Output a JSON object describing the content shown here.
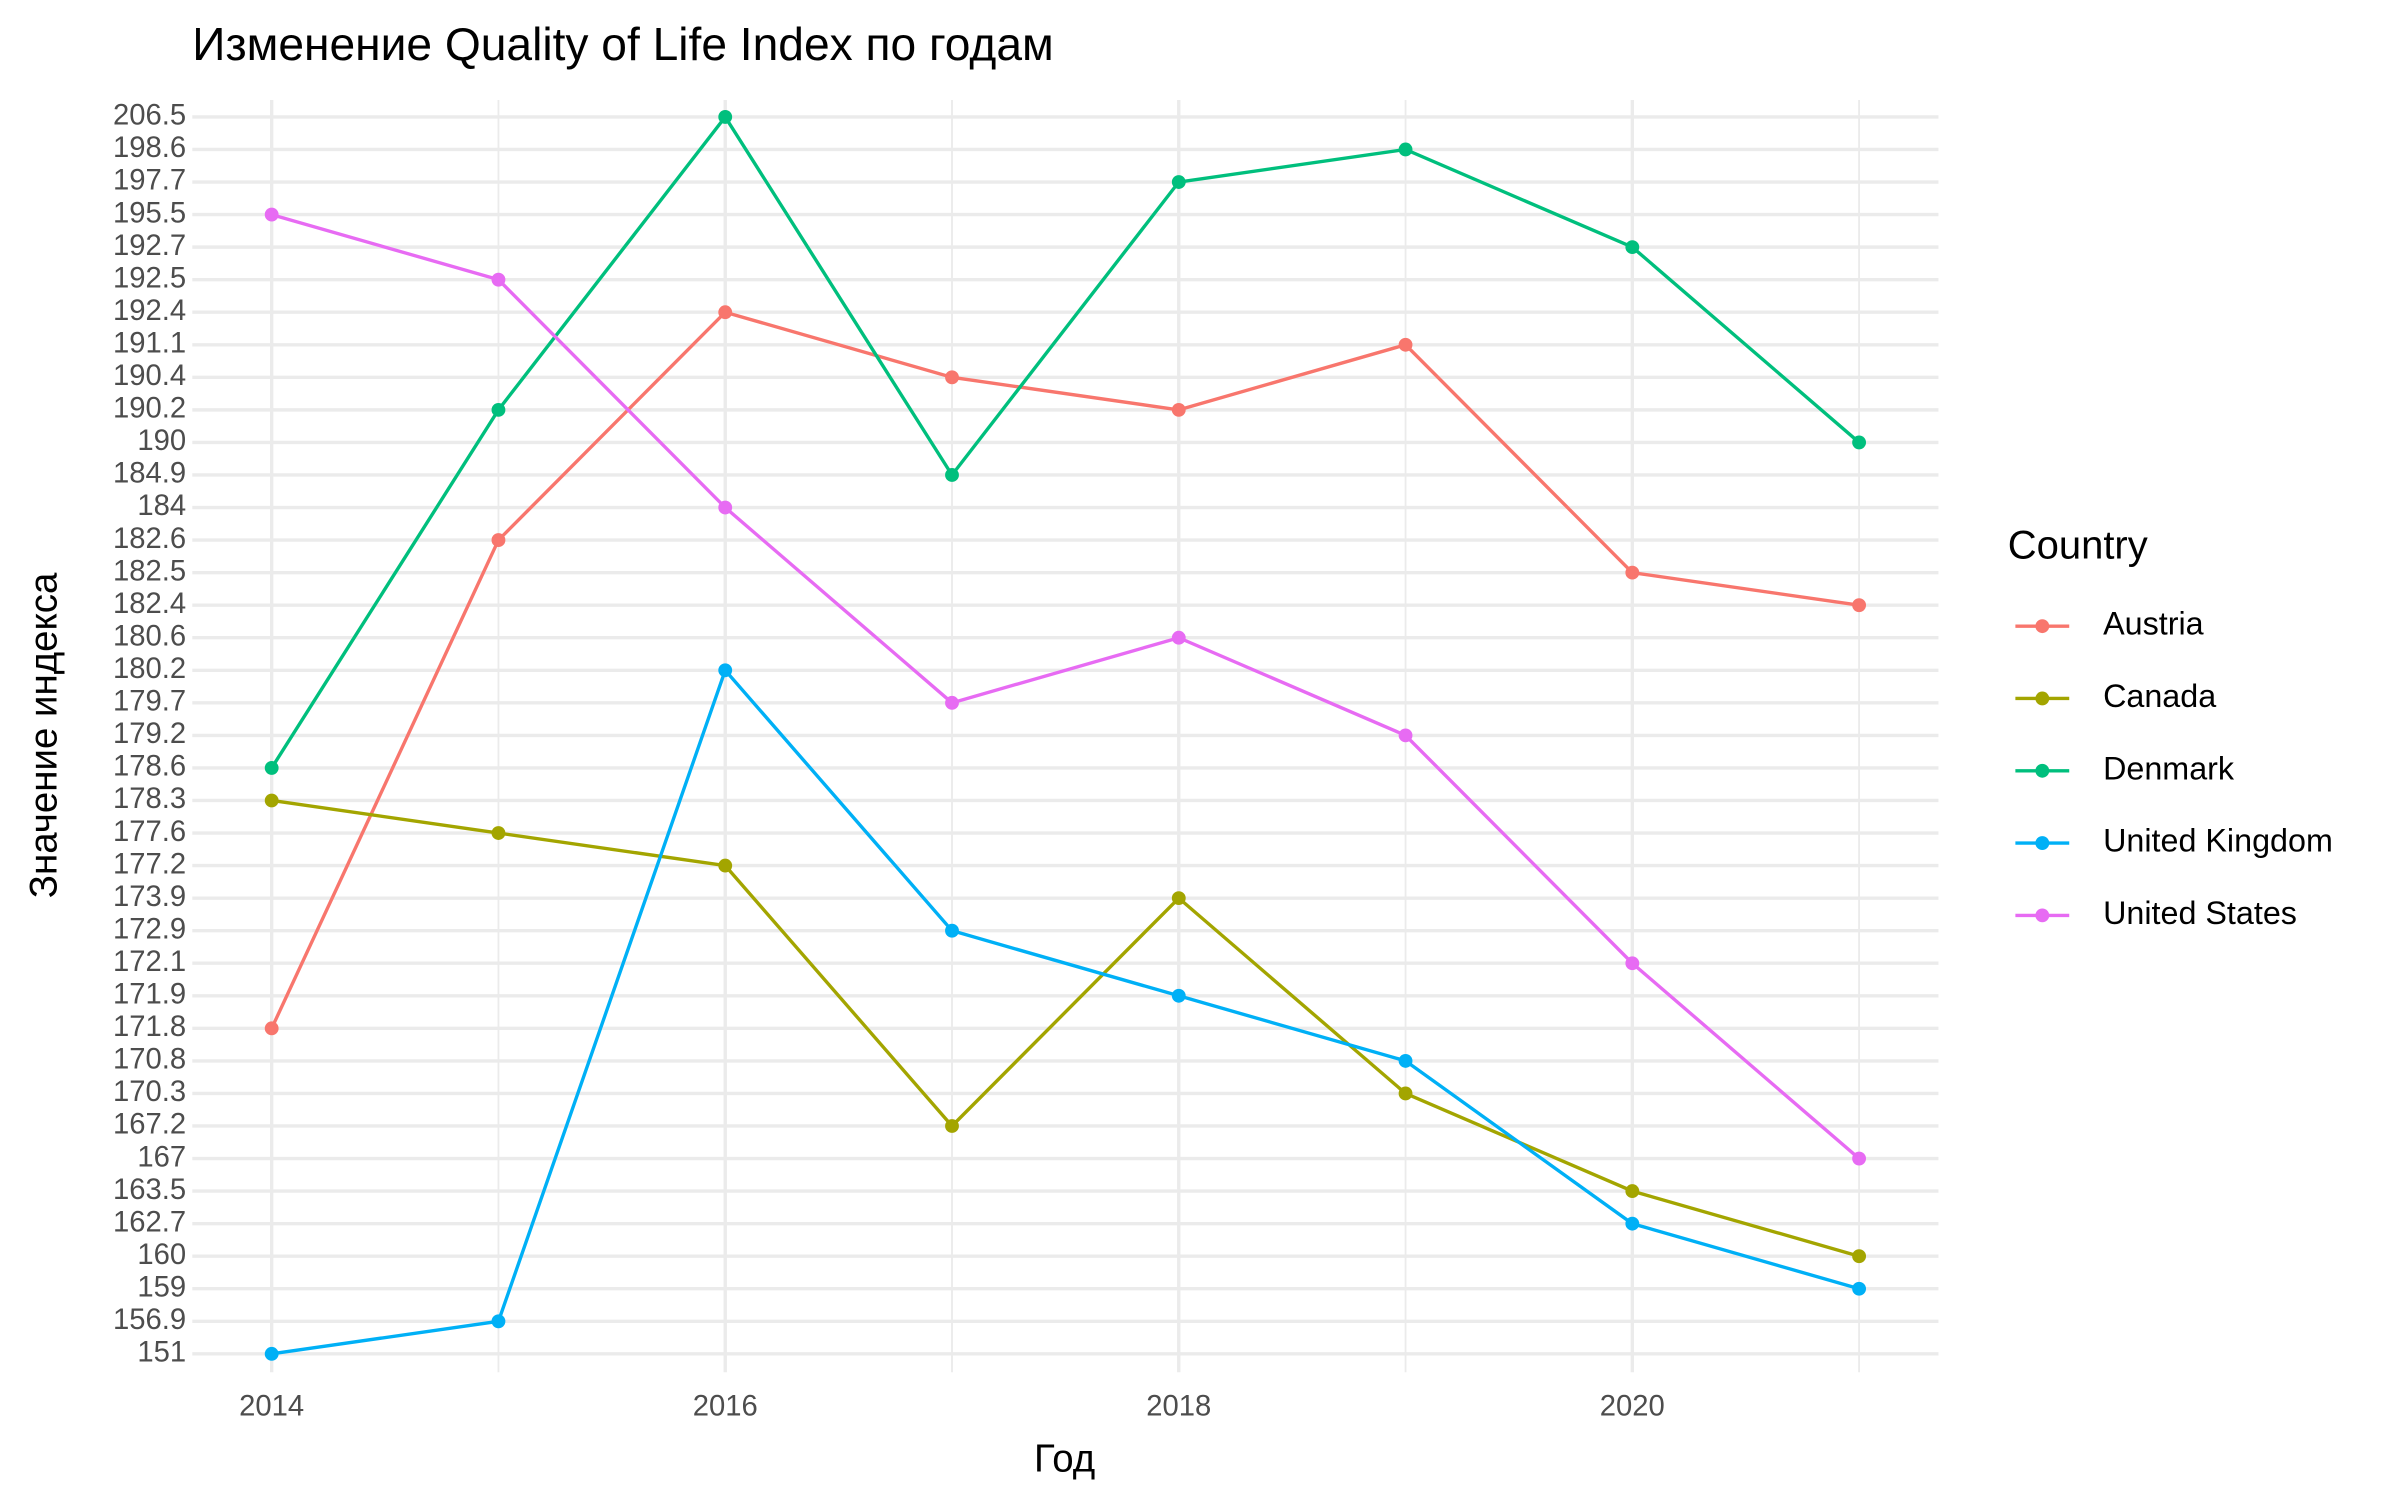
{
  "chart_data": {
    "type": "line",
    "title": "Изменение Quality of Life Index по годам",
    "x_label": "Год",
    "y_label": "Значение индекса",
    "legend_title": "Country",
    "legend": "right",
    "grid": true,
    "x": [
      2014,
      2015,
      2016,
      2017,
      2018,
      2019,
      2020,
      2021
    ],
    "xlim": [
      2013.65,
      2021.35
    ],
    "xticks": [
      2014,
      2016,
      2018,
      2020
    ],
    "ycategories": [
      "151",
      "156.9",
      "159",
      "160",
      "162.7",
      "163.5",
      "167",
      "167.2",
      "170.3",
      "170.8",
      "171.8",
      "171.9",
      "172.1",
      "172.9",
      "173.9",
      "177.2",
      "177.6",
      "178.3",
      "178.6",
      "179.2",
      "179.7",
      "180.2",
      "180.6",
      "182.4",
      "182.5",
      "182.6",
      "184",
      "184.9",
      "190",
      "190.2",
      "190.4",
      "191.1",
      "192.4",
      "192.5",
      "192.7",
      "195.5",
      "197.7",
      "198.6",
      "206.5"
    ],
    "series": [
      {
        "name": "Austria",
        "color": "#F8766D",
        "values": [
          171.8,
          182.6,
          192.4,
          190.4,
          190.2,
          191.1,
          182.5,
          182.4
        ]
      },
      {
        "name": "Canada",
        "color": "#A3A500",
        "values": [
          178.3,
          177.6,
          177.2,
          167.2,
          173.9,
          170.3,
          163.5,
          160
        ]
      },
      {
        "name": "Denmark",
        "color": "#00BF7D",
        "values": [
          178.6,
          190.2,
          206.5,
          184.9,
          197.7,
          198.6,
          192.7,
          190
        ]
      },
      {
        "name": "United Kingdom",
        "color": "#00B0F6",
        "values": [
          151,
          156.9,
          180.2,
          172.9,
          171.9,
          170.8,
          162.7,
          159
        ]
      },
      {
        "name": "United States",
        "color": "#E76BF3",
        "values": [
          195.5,
          192.5,
          184,
          179.7,
          180.6,
          179.2,
          172.1,
          167
        ]
      }
    ]
  }
}
